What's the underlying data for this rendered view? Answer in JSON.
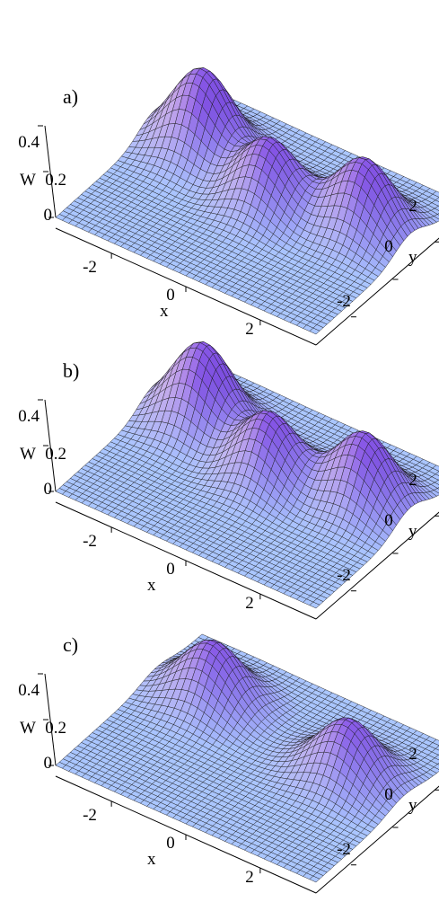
{
  "chart_data": [
    {
      "type": "surface3d",
      "panel_label": "a)",
      "zlabel": "W",
      "xlabel": "x",
      "ylabel": "y",
      "x_ticks": [
        "-2",
        "0",
        "2"
      ],
      "y_ticks": [
        "-2",
        "0",
        "2"
      ],
      "z_ticks": [
        "0",
        "0.2",
        "0.4"
      ],
      "x_values": [
        -2,
        0,
        2
      ],
      "y_values": [
        -2,
        0,
        2
      ],
      "z_values": [
        0,
        0.2,
        0.4
      ],
      "xlim": [
        -3.5,
        3.5
      ],
      "ylim": [
        -3.5,
        3.5
      ],
      "zlim": [
        0,
        0.4
      ],
      "surface_color": "#aac6ff",
      "peak_color": "#8a55e8",
      "mesh": "on",
      "peaks": [
        {
          "x": -2.2,
          "y": 1.2,
          "height": 0.4
        },
        {
          "x": 0.0,
          "y": 0.4,
          "height": 0.35
        },
        {
          "x": 2.2,
          "y": 1.0,
          "height": 0.35
        }
      ],
      "central_dip": true
    },
    {
      "type": "surface3d",
      "panel_label": "b)",
      "zlabel": "W",
      "xlabel": "x",
      "ylabel": "y",
      "x_ticks": [
        "-2",
        "0",
        "2"
      ],
      "y_ticks": [
        "-2",
        "0",
        "2"
      ],
      "z_ticks": [
        "0",
        "0.2",
        "0.4"
      ],
      "x_values": [
        -2,
        0,
        2
      ],
      "y_values": [
        -2,
        0,
        2
      ],
      "z_values": [
        0,
        0.2,
        0.4
      ],
      "xlim": [
        -3.5,
        3.5
      ],
      "ylim": [
        -3.5,
        3.5
      ],
      "zlim": [
        0,
        0.4
      ],
      "surface_color": "#aac6ff",
      "peak_color": "#8a55e8",
      "mesh": "on",
      "peaks": [
        {
          "x": -2.2,
          "y": 1.2,
          "height": 0.4
        },
        {
          "x": 0.0,
          "y": 0.4,
          "height": 0.35
        },
        {
          "x": 2.2,
          "y": 1.0,
          "height": 0.35
        }
      ],
      "central_dip": true
    },
    {
      "type": "surface3d",
      "panel_label": "c)",
      "zlabel": "W",
      "xlabel": "x",
      "ylabel": "y",
      "x_ticks": [
        "-2",
        "0",
        "2"
      ],
      "y_ticks": [
        "-2",
        "0",
        "2"
      ],
      "z_ticks": [
        "0",
        "0.2",
        "0.4"
      ],
      "x_values": [
        -2,
        0,
        2
      ],
      "y_values": [
        -2,
        0,
        2
      ],
      "z_values": [
        0,
        0.2,
        0.4
      ],
      "xlim": [
        -3.5,
        3.5
      ],
      "ylim": [
        -3.5,
        3.5
      ],
      "zlim": [
        0,
        0.4
      ],
      "surface_color": "#aac6ff",
      "peak_color": "#8a55e8",
      "mesh": "on",
      "peaks": [
        {
          "x": -2.0,
          "y": 1.3,
          "height": 0.28
        },
        {
          "x": 2.0,
          "y": 0.7,
          "height": 0.28
        }
      ],
      "central_dip": false
    }
  ]
}
